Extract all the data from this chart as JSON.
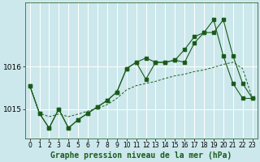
{
  "background_color": "#cce8ec",
  "grid_color": "#ffffff",
  "line_color": "#1a5c1a",
  "title": "Graphe pression niveau de la mer (hPa)",
  "title_fontsize": 7,
  "tick_labelsize": 5.5,
  "ytick_labelsize": 6.5,
  "xlim": [
    -0.5,
    23.5
  ],
  "ylim": [
    1014.3,
    1017.5
  ],
  "yticks": [
    1015,
    1016
  ],
  "xticks": [
    0,
    1,
    2,
    3,
    4,
    5,
    6,
    7,
    8,
    9,
    10,
    11,
    12,
    13,
    14,
    15,
    16,
    17,
    18,
    19,
    20,
    21,
    22,
    23
  ],
  "series1_x": [
    0,
    1,
    2,
    3,
    4,
    5,
    6,
    7,
    8,
    9,
    10,
    11,
    12,
    13,
    14,
    15,
    16,
    17,
    18,
    19,
    20,
    21,
    22,
    23
  ],
  "series1_y": [
    1015.55,
    1014.9,
    1014.55,
    1015.0,
    1014.55,
    1014.75,
    1014.9,
    1015.05,
    1015.2,
    1015.4,
    1015.95,
    1016.1,
    1016.2,
    1016.1,
    1016.1,
    1016.15,
    1016.1,
    1016.55,
    1016.8,
    1016.8,
    1017.1,
    1016.25,
    1015.6,
    1015.25
  ],
  "series2_x": [
    0,
    1,
    2,
    3,
    4,
    5,
    6,
    7,
    8,
    9,
    10,
    11,
    12,
    13,
    14,
    15,
    16,
    17,
    18,
    19,
    20,
    21,
    22,
    23
  ],
  "series2_y": [
    1015.55,
    1014.9,
    1014.55,
    1015.0,
    1014.55,
    1014.75,
    1014.9,
    1015.05,
    1015.2,
    1015.4,
    1015.95,
    1016.1,
    1015.7,
    1016.1,
    1016.1,
    1016.15,
    1016.4,
    1016.7,
    1016.8,
    1017.1,
    1016.25,
    1015.6,
    1015.25,
    1015.25
  ],
  "series3_x": [
    0,
    1,
    2,
    3,
    4,
    5,
    6,
    7,
    8,
    9,
    10,
    11,
    12,
    13,
    14,
    15,
    16,
    17,
    18,
    19,
    20,
    21,
    22,
    23
  ],
  "series3_y": [
    1015.55,
    1014.9,
    1014.82,
    1014.88,
    1014.82,
    1014.88,
    1014.95,
    1015.02,
    1015.1,
    1015.25,
    1015.45,
    1015.55,
    1015.6,
    1015.65,
    1015.72,
    1015.78,
    1015.82,
    1015.88,
    1015.92,
    1015.98,
    1016.05,
    1016.1,
    1015.95,
    1015.25
  ]
}
